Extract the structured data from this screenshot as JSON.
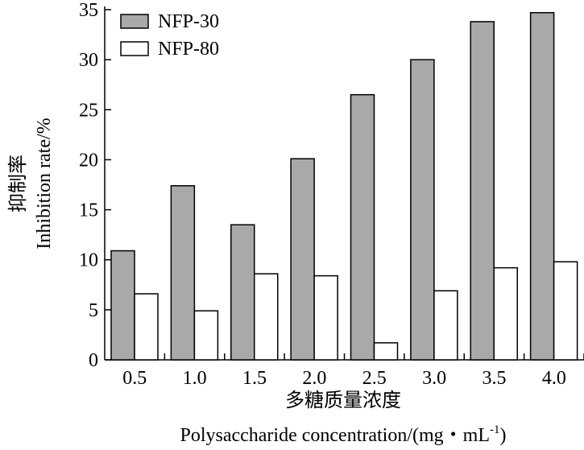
{
  "chart_data": {
    "type": "bar",
    "categories": [
      "0.5",
      "1.0",
      "1.5",
      "2.0",
      "2.5",
      "3.0",
      "3.5",
      "4.0"
    ],
    "series": [
      {
        "name": "NFP-30",
        "values": [
          10.9,
          17.4,
          13.5,
          20.1,
          26.5,
          30.0,
          33.8,
          34.7
        ]
      },
      {
        "name": "NFP-80",
        "values": [
          6.6,
          4.9,
          8.6,
          8.4,
          1.7,
          6.9,
          9.2,
          9.8
        ]
      }
    ],
    "xlabel_cn": "多糖质量浓度",
    "xlabel_en": "Polysaccharide concentration/(mg・mL",
    "xlabel_en_sup": "-1",
    "xlabel_en_end": ")",
    "ylabel_cn": "抑制率",
    "ylabel_en": "Inhibition rate/%",
    "ylim": [
      0,
      35
    ],
    "yticks": [
      0,
      5,
      10,
      15,
      20,
      25,
      30,
      35
    ],
    "legend_position": "top-left",
    "colors": {
      "NFP-30": "#a9a9a9",
      "NFP-80": "#ffffff"
    }
  }
}
